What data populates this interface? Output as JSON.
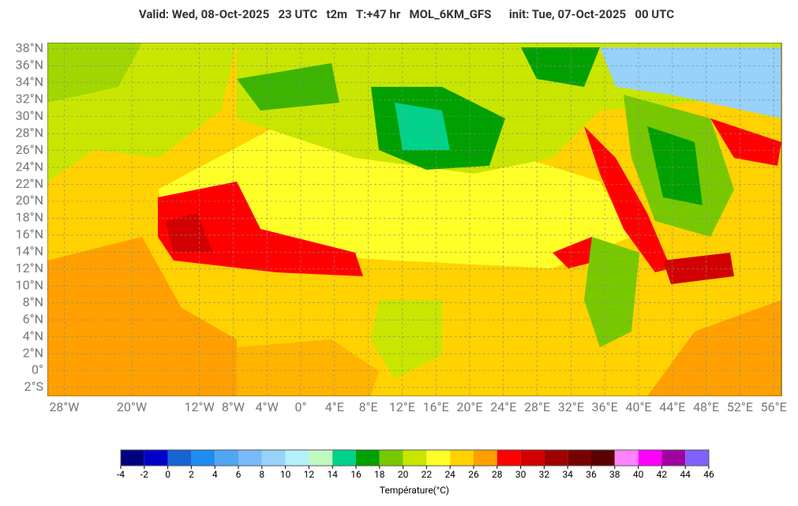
{
  "header": {
    "title": "Valid: Wed, 08-Oct-2025   23 UTC   t2m   T:+47 hr   MOL_6KM_GFS      init: Tue, 07-Oct-2025   00 UTC"
  },
  "map": {
    "lat_ticks": [
      {
        "value": 38,
        "label": "38°N"
      },
      {
        "value": 36,
        "label": "36°N"
      },
      {
        "value": 34,
        "label": "34°N"
      },
      {
        "value": 32,
        "label": "32°N"
      },
      {
        "value": 30,
        "label": "30°N"
      },
      {
        "value": 28,
        "label": "28°N"
      },
      {
        "value": 26,
        "label": "26°N"
      },
      {
        "value": 24,
        "label": "24°N"
      },
      {
        "value": 22,
        "label": "22°N"
      },
      {
        "value": 20,
        "label": "20°N"
      },
      {
        "value": 18,
        "label": "18°N"
      },
      {
        "value": 16,
        "label": "16°N"
      },
      {
        "value": 14,
        "label": "14°N"
      },
      {
        "value": 12,
        "label": "12°N"
      },
      {
        "value": 10,
        "label": "10°N"
      },
      {
        "value": 8,
        "label": "8°N"
      },
      {
        "value": 6,
        "label": "6°N"
      },
      {
        "value": 4,
        "label": "4°N"
      },
      {
        "value": 2,
        "label": "2°N"
      },
      {
        "value": 0,
        "label": "0°"
      },
      {
        "value": -2,
        "label": "2°S"
      }
    ],
    "lon_ticks": [
      {
        "value": -28,
        "label": "28°W"
      },
      {
        "value": -20,
        "label": "20°W"
      },
      {
        "value": -12,
        "label": "12°W"
      },
      {
        "value": -8,
        "label": "8°W"
      },
      {
        "value": -4,
        "label": "4°W"
      },
      {
        "value": 0,
        "label": "0°"
      },
      {
        "value": 4,
        "label": "4°E"
      },
      {
        "value": 8,
        "label": "8°E"
      },
      {
        "value": 12,
        "label": "12°E"
      },
      {
        "value": 16,
        "label": "16°E"
      },
      {
        "value": 20,
        "label": "20°E"
      },
      {
        "value": 24,
        "label": "24°E"
      },
      {
        "value": 28,
        "label": "28°E"
      },
      {
        "value": 32,
        "label": "32°E"
      },
      {
        "value": 36,
        "label": "36°E"
      },
      {
        "value": 40,
        "label": "40°E"
      },
      {
        "value": 44,
        "label": "44°E"
      },
      {
        "value": 48,
        "label": "48°E"
      },
      {
        "value": 52,
        "label": "52°E"
      },
      {
        "value": 56,
        "label": "56°E"
      }
    ]
  },
  "colorbar": {
    "ticks": [
      -4,
      -2,
      0,
      2,
      4,
      6,
      8,
      10,
      12,
      14,
      16,
      18,
      20,
      22,
      24,
      26,
      28,
      30,
      32,
      34,
      36,
      38,
      40,
      42,
      44,
      46
    ],
    "colors": [
      "#000080",
      "#0000c8",
      "#1464d2",
      "#1e8cf0",
      "#50a5f5",
      "#78b9fa",
      "#96d2fa",
      "#b4f0fa",
      "#c0f8c0",
      "#00d28c",
      "#00a000",
      "#78c800",
      "#c8e600",
      "#ffff28",
      "#ffd200",
      "#ffa000",
      "#ff0000",
      "#d20000",
      "#a00000",
      "#780000",
      "#5a0000",
      "#ff82ff",
      "#ff00ff",
      "#a000a0",
      "#8060ff"
    ],
    "label": "Température(°C)"
  }
}
